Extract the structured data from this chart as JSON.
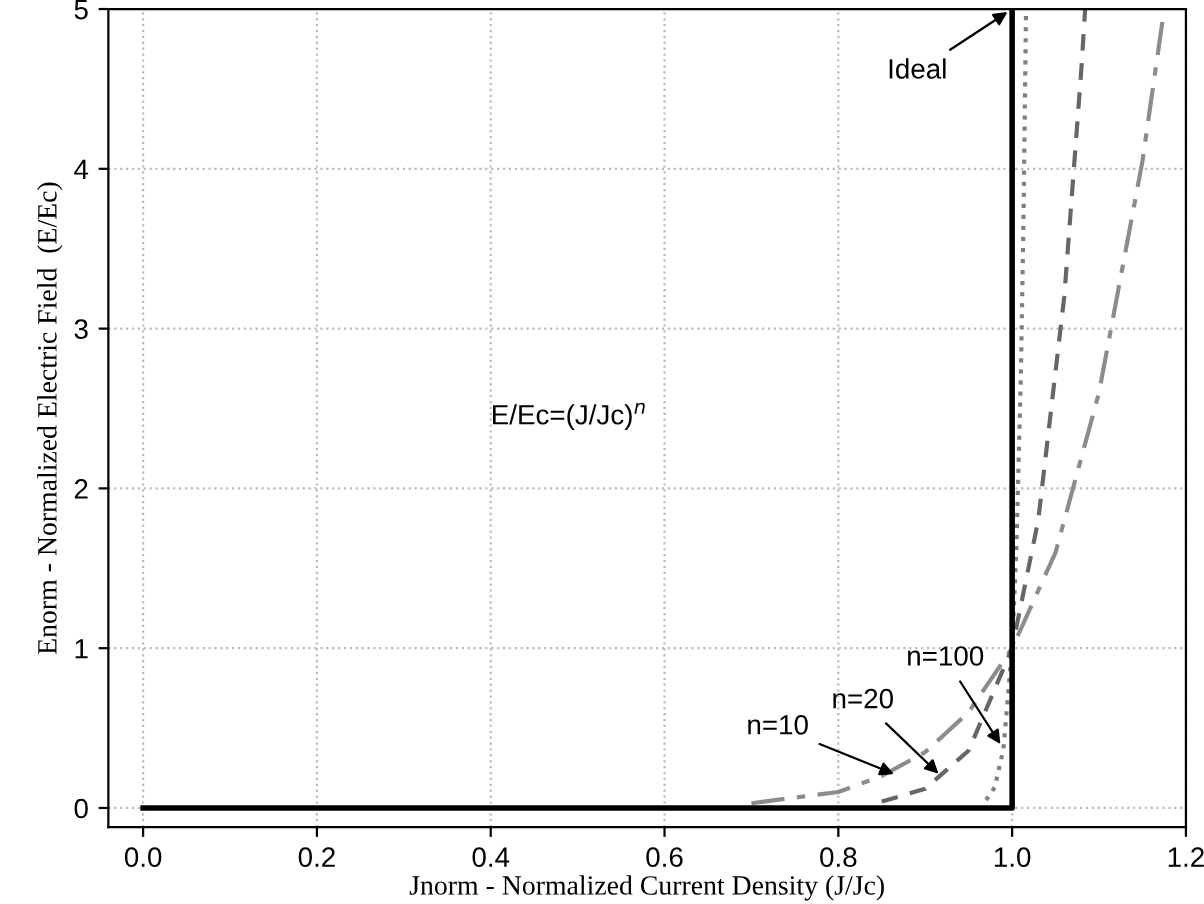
{
  "chart_data": {
    "type": "line",
    "xlabel": "Jnorm - Normalized Current Density (J/Jc)",
    "ylabel": "Enorm - Normalized Electric Field  (E/Ec)",
    "xlim": [
      -0.04,
      1.2
    ],
    "ylim": [
      -0.12,
      5
    ],
    "xticks": [
      {
        "value": 0,
        "label": "0.0"
      },
      0.2,
      0.4,
      0.6,
      0.8,
      {
        "value": 1,
        "label": "1.0"
      },
      1.2
    ],
    "yticks": [
      0,
      1,
      2,
      3,
      4,
      5
    ],
    "grid": true,
    "legend": false,
    "series": [
      {
        "color": "#000000",
        "line_style": "solid",
        "x": [
          0,
          1,
          1
        ],
        "values": [
          0,
          0,
          5
        ]
      },
      {
        "color": "#8c8c8c",
        "line_style": "dashdot",
        "x": [
          0.7,
          0.8,
          0.85,
          0.9,
          0.95,
          1.0,
          1.05,
          1.1,
          1.15,
          1.175
        ],
        "values": [
          0.03,
          0.1,
          0.2,
          0.35,
          0.6,
          1,
          1.6,
          2.6,
          4.05,
          5
        ]
      },
      {
        "color": "#666666",
        "line_style": "dashed",
        "x": [
          0.85,
          0.9,
          0.95,
          1.0,
          1.03,
          1.06,
          1.08,
          1.084
        ],
        "values": [
          0.04,
          0.12,
          0.36,
          1,
          1.8,
          3.2,
          4.65,
          5
        ]
      },
      {
        "color": "#808080",
        "line_style": "dotted",
        "x": [
          0.97,
          0.98,
          0.99,
          1.0,
          1.005,
          1.01,
          1.013,
          1.016
        ],
        "values": [
          0.05,
          0.13,
          0.37,
          1,
          1.65,
          2.7,
          3.65,
          5
        ]
      }
    ],
    "annotations": [
      {
        "text": "Ideal",
        "x": 1.0,
        "y": 5
      },
      {
        "text": "n=100",
        "x": 0.99,
        "y": 0.37
      },
      {
        "text": "n=20",
        "x": 0.92,
        "y": 0.19
      },
      {
        "text": "n=10",
        "x": 0.87,
        "y": 0.2
      },
      "E/Ec=(J/Jc)$^{n}$"
    ]
  }
}
